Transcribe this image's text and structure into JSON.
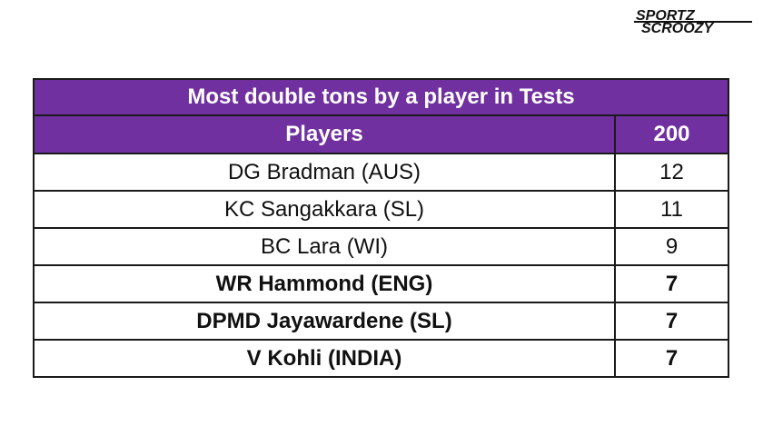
{
  "brand": {
    "logo_text": "SPORTZ SCROOZY",
    "logo_icon": "sportz-scroozy-logo"
  },
  "table": {
    "title": "Most double tons by a player in Tests",
    "headers": {
      "player": "Players",
      "count": "200"
    },
    "rows": [
      {
        "player": "DG Bradman (AUS)",
        "count": "12",
        "bold": false
      },
      {
        "player": "KC Sangakkara (SL)",
        "count": "11",
        "bold": false
      },
      {
        "player": "BC Lara (WI)",
        "count": "9",
        "bold": false
      },
      {
        "player": "WR Hammond (ENG)",
        "count": "7",
        "bold": true
      },
      {
        "player": "DPMD Jayawardene (SL)",
        "count": "7",
        "bold": true
      },
      {
        "player": "V Kohli (INDIA)",
        "count": "7",
        "bold": true
      }
    ]
  },
  "colors": {
    "header_bg": "#7030a0",
    "header_text": "#ffffff",
    "border": "#1a1a1a"
  }
}
